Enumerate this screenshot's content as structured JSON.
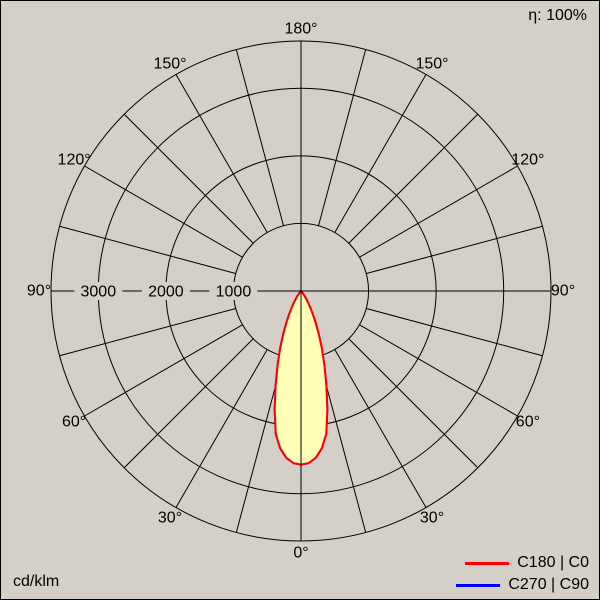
{
  "chart_data": {
    "type": "line",
    "variant": "polar-photometric-intensity-curve",
    "efficiency_label": "η: 100%",
    "unit_label": "cd/klm",
    "grid": true,
    "grid_color": "#000000",
    "background": "#d4d0c8",
    "angle_step_deg": 15,
    "angle_labels": [
      {
        "deg": 0,
        "label": "0°"
      },
      {
        "deg": 30,
        "label": "30°"
      },
      {
        "deg": 60,
        "label": "60°"
      },
      {
        "deg": 90,
        "label": "90°"
      },
      {
        "deg": 120,
        "label": "120°"
      },
      {
        "deg": 150,
        "label": "150°"
      },
      {
        "deg": 180,
        "label": "180°"
      }
    ],
    "radial_ticks": [
      {
        "value": 1000,
        "label": "1000"
      },
      {
        "value": 2000,
        "label": "2000"
      },
      {
        "value": 3000,
        "label": "3000"
      }
    ],
    "r_max": 3700,
    "series": [
      {
        "name": "C270 | C90",
        "color": "#0000ff",
        "fill": "none",
        "gamma_deg": [
          0,
          2.5,
          5,
          7.5,
          10,
          12.5,
          15,
          17.5,
          20,
          22.5,
          25,
          27.5,
          30,
          32.5,
          35,
          37.5,
          40,
          42.5,
          45
        ],
        "cd_per_klm": [
          2570,
          2550,
          2480,
          2350,
          2150,
          1800,
          1450,
          1150,
          900,
          680,
          500,
          360,
          250,
          160,
          95,
          50,
          20,
          5,
          0
        ]
      },
      {
        "name": "C180 | C0",
        "color": "#ff0000",
        "fill": "#ffffb8",
        "gamma_deg": [
          0,
          2.5,
          5,
          7.5,
          10,
          12.5,
          15,
          17.5,
          20,
          22.5,
          25,
          27.5,
          30,
          32.5,
          35,
          37.5,
          40,
          42.5,
          45
        ],
        "cd_per_klm": [
          2570,
          2550,
          2480,
          2350,
          2150,
          1800,
          1450,
          1150,
          900,
          680,
          500,
          360,
          250,
          160,
          95,
          50,
          20,
          5,
          0
        ]
      }
    ],
    "legend": [
      {
        "label": "C180 | C0",
        "color": "#ff0000"
      },
      {
        "label": "C270 | C90",
        "color": "#0000ff"
      }
    ]
  }
}
